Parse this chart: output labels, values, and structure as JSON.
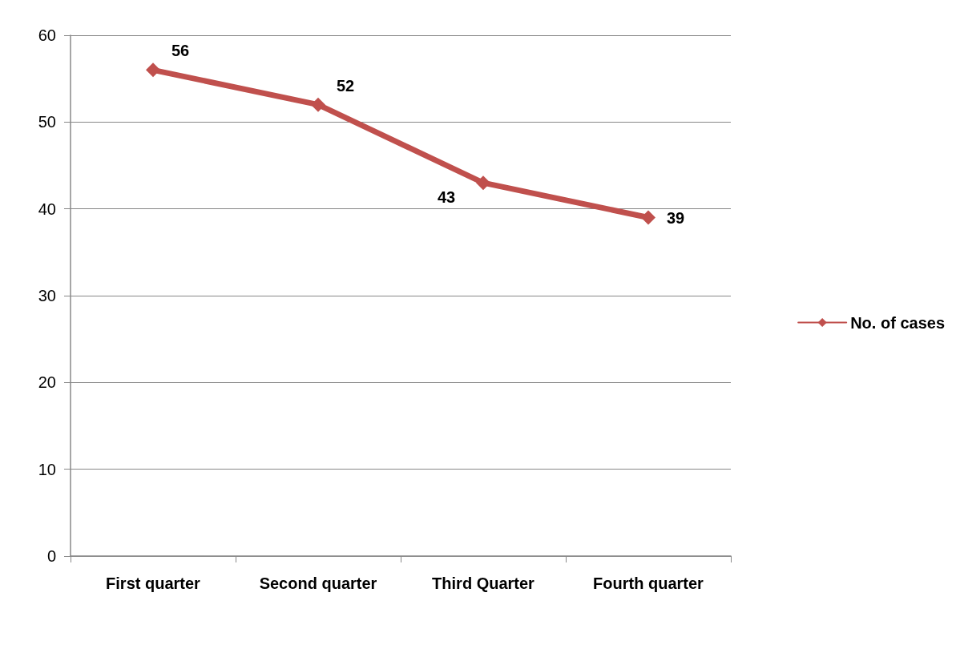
{
  "chart_data": {
    "type": "line",
    "categories": [
      "First quarter",
      "Second quarter",
      "Third Quarter",
      "Fourth quarter"
    ],
    "series": [
      {
        "name": "No. of cases",
        "color": "#c0504d",
        "values": [
          56,
          52,
          43,
          39
        ]
      }
    ],
    "ylim": [
      0,
      60
    ],
    "yticks": [
      0,
      10,
      20,
      30,
      40,
      50,
      60
    ],
    "grid": "y",
    "legend": "right",
    "marker": "diamond",
    "data_labels": true
  }
}
